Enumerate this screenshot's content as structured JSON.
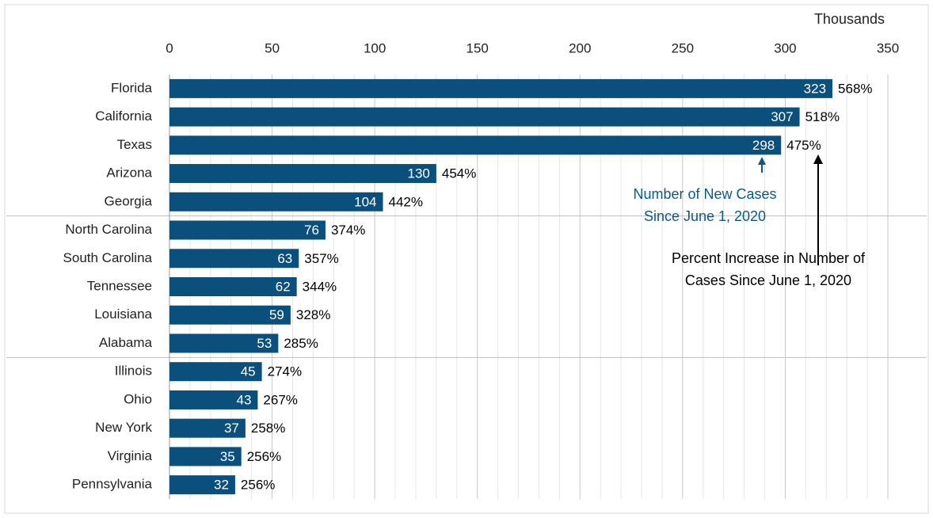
{
  "chart_data": {
    "type": "bar",
    "orientation": "horizontal",
    "x_label": "Thousands",
    "categories": [
      "Florida",
      "California",
      "Texas",
      "Arizona",
      "Georgia",
      "North Carolina",
      "South Carolina",
      "Tennessee",
      "Louisiana",
      "Alabama",
      "Illinois",
      "Ohio",
      "New York",
      "Virginia",
      "Pennsylvania"
    ],
    "series": [
      {
        "name": "Number of New Cases Since June 1, 2020",
        "color": "#0b4f7c",
        "values": [
          323,
          307,
          298,
          130,
          104,
          76,
          63,
          62,
          59,
          53,
          45,
          43,
          37,
          35,
          32
        ]
      },
      {
        "name": "Percent Increase in Number of Cases Since June 1, 2020",
        "color": "#000000",
        "values": [
          568,
          518,
          475,
          454,
          442,
          374,
          357,
          344,
          328,
          285,
          274,
          267,
          258,
          256,
          256
        ],
        "value_labels": [
          "568%",
          "518%",
          "475%",
          "454%",
          "442%",
          "374%",
          "357%",
          "344%",
          "328%",
          "285%",
          "274%",
          "267%",
          "258%",
          "256%",
          "256%"
        ]
      }
    ],
    "annotations": [
      {
        "lines": [
          "Number of New Cases",
          "Since June 1, 2020"
        ],
        "color": "#0b5a86"
      },
      {
        "lines": [
          "Percent Increase in Number of",
          "Cases Since June 1, 2020"
        ],
        "color": "#000000"
      }
    ],
    "xlim": [
      0,
      350
    ],
    "xticks": [
      0,
      50,
      100,
      150,
      200,
      250,
      300,
      350
    ],
    "grid": true,
    "minor_grid": true,
    "group_separators_after": [
      "Georgia",
      "Alabama"
    ]
  }
}
